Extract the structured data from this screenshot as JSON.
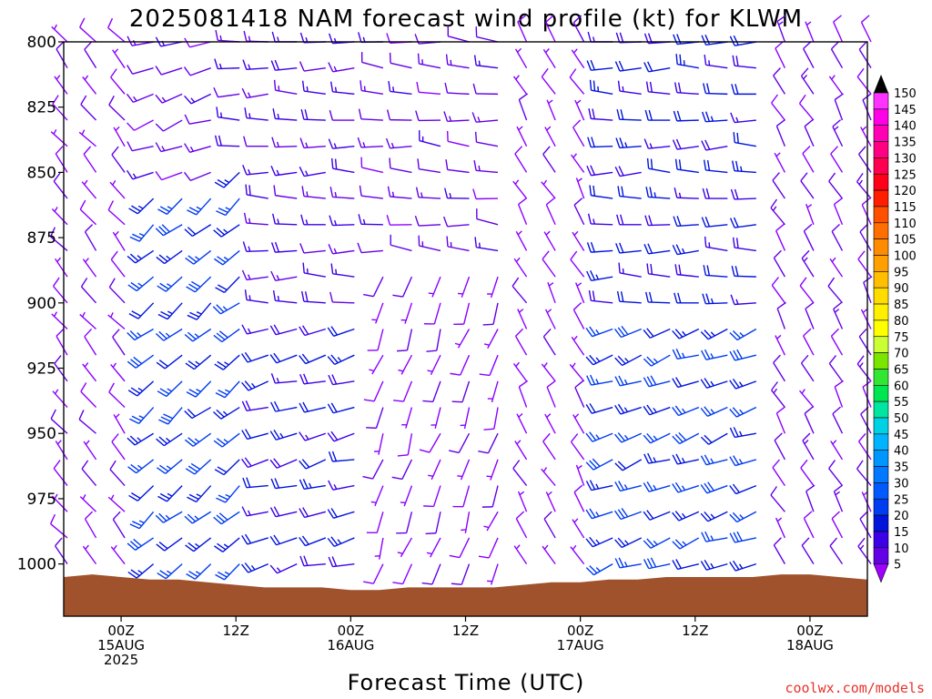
{
  "chart_data": {
    "type": "wind_profile",
    "title": "2025081418 NAM forecast wind profile (kt) for KLWM",
    "xlabel": "Forecast Time (UTC)",
    "credit": "coolwx.com/models",
    "y_ticks": [
      "800",
      "825",
      "850",
      "875",
      "900",
      "925",
      "950",
      "975",
      "1000"
    ],
    "y_values": [
      800,
      825,
      850,
      875,
      900,
      925,
      950,
      975,
      1000
    ],
    "ylim": [
      800,
      1020
    ],
    "y_inverted": true,
    "x_ticks": [
      {
        "hour": 6,
        "lines": [
          "00Z",
          "15AUG",
          "2025"
        ]
      },
      {
        "hour": 18,
        "lines": [
          "12Z"
        ]
      },
      {
        "hour": 30,
        "lines": [
          "00Z",
          "16AUG"
        ]
      },
      {
        "hour": 42,
        "lines": [
          "12Z"
        ]
      },
      {
        "hour": 54,
        "lines": [
          "00Z",
          "17AUG"
        ]
      },
      {
        "hour": 66,
        "lines": [
          "12Z"
        ]
      },
      {
        "hour": 78,
        "lines": [
          "00Z",
          "18AUG"
        ]
      }
    ],
    "xlim": [
      0,
      84
    ],
    "colorbar": {
      "labels": [
        "150",
        "145",
        "140",
        "135",
        "130",
        "125",
        "120",
        "115",
        "110",
        "105",
        "100",
        "95",
        "90",
        "85",
        "80",
        "75",
        "70",
        "65",
        "60",
        "55",
        "50",
        "45",
        "40",
        "35",
        "30",
        "25",
        "20",
        "15",
        "10",
        "5"
      ],
      "colors": [
        "#ff33ff",
        "#ff00e6",
        "#ff00b4",
        "#ff0082",
        "#ff0050",
        "#ff0018",
        "#ff1e00",
        "#ff5000",
        "#ff6e00",
        "#ff8c00",
        "#ffa000",
        "#ffbe00",
        "#ffdc00",
        "#fff000",
        "#ffff00",
        "#ccff33",
        "#7ae600",
        "#33e633",
        "#00e650",
        "#00e6a0",
        "#00d2e6",
        "#00b4ff",
        "#0096ff",
        "#0078ff",
        "#005aff",
        "#003cf0",
        "#0014dc",
        "#3c00e6",
        "#6400e6",
        "#8c00ff"
      ],
      "top_arrow_color": "#000000",
      "bottom_arrow_color": "#a000ff"
    },
    "terrain_color": "#a0522d",
    "surface_pressure": [
      {
        "hour": 0,
        "p": 1005
      },
      {
        "hour": 3,
        "p": 1004
      },
      {
        "hour": 6,
        "p": 1005
      },
      {
        "hour": 9,
        "p": 1006
      },
      {
        "hour": 12,
        "p": 1006
      },
      {
        "hour": 15,
        "p": 1007
      },
      {
        "hour": 18,
        "p": 1008
      },
      {
        "hour": 21,
        "p": 1009
      },
      {
        "hour": 24,
        "p": 1009
      },
      {
        "hour": 27,
        "p": 1009
      },
      {
        "hour": 30,
        "p": 1010
      },
      {
        "hour": 33,
        "p": 1010
      },
      {
        "hour": 36,
        "p": 1009
      },
      {
        "hour": 39,
        "p": 1009
      },
      {
        "hour": 42,
        "p": 1009
      },
      {
        "hour": 45,
        "p": 1009
      },
      {
        "hour": 48,
        "p": 1008
      },
      {
        "hour": 51,
        "p": 1007
      },
      {
        "hour": 54,
        "p": 1007
      },
      {
        "hour": 57,
        "p": 1006
      },
      {
        "hour": 60,
        "p": 1006
      },
      {
        "hour": 63,
        "p": 1005
      },
      {
        "hour": 66,
        "p": 1005
      },
      {
        "hour": 69,
        "p": 1005
      },
      {
        "hour": 72,
        "p": 1005
      },
      {
        "hour": 75,
        "p": 1004
      },
      {
        "hour": 78,
        "p": 1004
      },
      {
        "hour": 81,
        "p": 1005
      },
      {
        "hour": 84,
        "p": 1006
      }
    ],
    "wind_field_levels_hpa": [
      800,
      810,
      820,
      830,
      840,
      850,
      860,
      870,
      880,
      890,
      900,
      910,
      920,
      930,
      940,
      950,
      960,
      970,
      980,
      990,
      1000
    ],
    "wind_field_hours": [
      0,
      3,
      6,
      9,
      12,
      15,
      18,
      21,
      24,
      27,
      30,
      33,
      36,
      39,
      42,
      45,
      48,
      51,
      54,
      57,
      60,
      63,
      66,
      69,
      72,
      75,
      78,
      81,
      84
    ],
    "wind_regimes": [
      {
        "hours": [
          0,
          6
        ],
        "levels": [
          800,
          1000
        ],
        "dir_deg": 320,
        "speed_kt": 8
      },
      {
        "hours": [
          6,
          15
        ],
        "levels": [
          800,
          850
        ],
        "dir_deg": 250,
        "speed_kt": 12
      },
      {
        "hours": [
          6,
          18
        ],
        "levels": [
          850,
          1000
        ],
        "dir_deg": 230,
        "speed_kt": 25
      },
      {
        "hours": [
          18,
          30
        ],
        "levels": [
          800,
          900
        ],
        "dir_deg": 270,
        "speed_kt": 15
      },
      {
        "hours": [
          18,
          30
        ],
        "levels": [
          900,
          1000
        ],
        "dir_deg": 255,
        "speed_kt": 20
      },
      {
        "hours": [
          30,
          46
        ],
        "levels": [
          800,
          880
        ],
        "dir_deg": 275,
        "speed_kt": 12
      },
      {
        "hours": [
          30,
          46
        ],
        "levels": [
          880,
          1000
        ],
        "dir_deg": 200,
        "speed_kt": 8
      },
      {
        "hours": [
          46,
          54
        ],
        "levels": [
          800,
          1000
        ],
        "dir_deg": 330,
        "speed_kt": 7
      },
      {
        "hours": [
          54,
          72
        ],
        "levels": [
          800,
          900
        ],
        "dir_deg": 270,
        "speed_kt": 20
      },
      {
        "hours": [
          54,
          72
        ],
        "levels": [
          900,
          1000
        ],
        "dir_deg": 250,
        "speed_kt": 25
      },
      {
        "hours": [
          72,
          84
        ],
        "levels": [
          800,
          1000
        ],
        "dir_deg": 330,
        "speed_kt": 10
      }
    ]
  }
}
